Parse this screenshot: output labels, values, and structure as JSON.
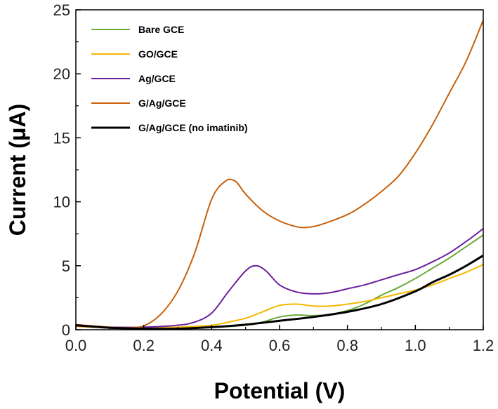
{
  "chart_data": {
    "type": "line",
    "xlabel": "Potential (V)",
    "ylabel": "Current (μA)",
    "xlim": [
      0,
      1.2
    ],
    "ylim": [
      0,
      25
    ],
    "xticks": [
      "0.0",
      "0.2",
      "0.4",
      "0.6",
      "0.8",
      "1.0",
      "1.2"
    ],
    "yticks": [
      "0",
      "5",
      "10",
      "15",
      "20",
      "25"
    ],
    "grid": false,
    "legend_position": "top-left",
    "series": [
      {
        "name": "Bare GCE",
        "color": "#6aaa3a",
        "x": [
          0,
          0.1,
          0.2,
          0.3,
          0.4,
          0.5,
          0.55,
          0.6,
          0.65,
          0.7,
          0.75,
          0.8,
          0.85,
          0.9,
          0.95,
          1.0,
          1.05,
          1.1,
          1.15,
          1.2
        ],
        "y": [
          0.3,
          0.2,
          0.15,
          0.15,
          0.2,
          0.35,
          0.6,
          1.0,
          1.15,
          1.1,
          1.2,
          1.5,
          2.0,
          2.7,
          3.3,
          4.0,
          4.8,
          5.6,
          6.5,
          7.4
        ]
      },
      {
        "name": "GO/GCE",
        "color": "#f5b800",
        "x": [
          0,
          0.1,
          0.2,
          0.3,
          0.4,
          0.45,
          0.5,
          0.55,
          0.6,
          0.65,
          0.7,
          0.75,
          0.8,
          0.85,
          0.9,
          0.95,
          1.0,
          1.05,
          1.1,
          1.15,
          1.2
        ],
        "y": [
          0.25,
          0.15,
          0.15,
          0.2,
          0.35,
          0.6,
          0.9,
          1.4,
          1.9,
          2.0,
          1.85,
          1.85,
          2.0,
          2.2,
          2.5,
          2.8,
          3.1,
          3.5,
          4.0,
          4.5,
          5.1
        ]
      },
      {
        "name": "Ag/GCE",
        "color": "#6b1f9e",
        "x": [
          0,
          0.1,
          0.2,
          0.3,
          0.35,
          0.4,
          0.45,
          0.5,
          0.53,
          0.56,
          0.6,
          0.65,
          0.7,
          0.75,
          0.8,
          0.85,
          0.9,
          0.95,
          1.0,
          1.05,
          1.1,
          1.15,
          1.2
        ],
        "y": [
          0.3,
          0.2,
          0.2,
          0.35,
          0.6,
          1.3,
          3.0,
          4.6,
          5.0,
          4.6,
          3.5,
          2.95,
          2.8,
          2.9,
          3.2,
          3.5,
          3.9,
          4.3,
          4.7,
          5.3,
          6.0,
          6.9,
          7.9
        ]
      },
      {
        "name": "G/Ag/GCE",
        "color": "#c8600a",
        "x": [
          0,
          0.1,
          0.15,
          0.2,
          0.25,
          0.3,
          0.35,
          0.4,
          0.44,
          0.47,
          0.5,
          0.55,
          0.6,
          0.65,
          0.68,
          0.72,
          0.8,
          0.85,
          0.9,
          0.95,
          1.0,
          1.05,
          1.1,
          1.15,
          1.2
        ],
        "y": [
          0.4,
          0.2,
          0.15,
          0.3,
          1.2,
          3.0,
          6.0,
          10.2,
          11.6,
          11.6,
          10.6,
          9.3,
          8.5,
          8.05,
          8.0,
          8.2,
          9.0,
          9.8,
          10.8,
          12.0,
          13.8,
          16.0,
          18.5,
          21.0,
          24.2
        ]
      },
      {
        "name": "G/Ag/GCE (no imatinib)",
        "color": "#000000",
        "x": [
          0,
          0.1,
          0.2,
          0.3,
          0.4,
          0.5,
          0.6,
          0.7,
          0.8,
          0.9,
          1.0,
          1.05,
          1.1,
          1.15,
          1.2
        ],
        "y": [
          0.35,
          0.15,
          0.08,
          0.08,
          0.2,
          0.4,
          0.7,
          1.0,
          1.4,
          2.0,
          3.0,
          3.7,
          4.3,
          5.0,
          5.8
        ]
      }
    ]
  }
}
